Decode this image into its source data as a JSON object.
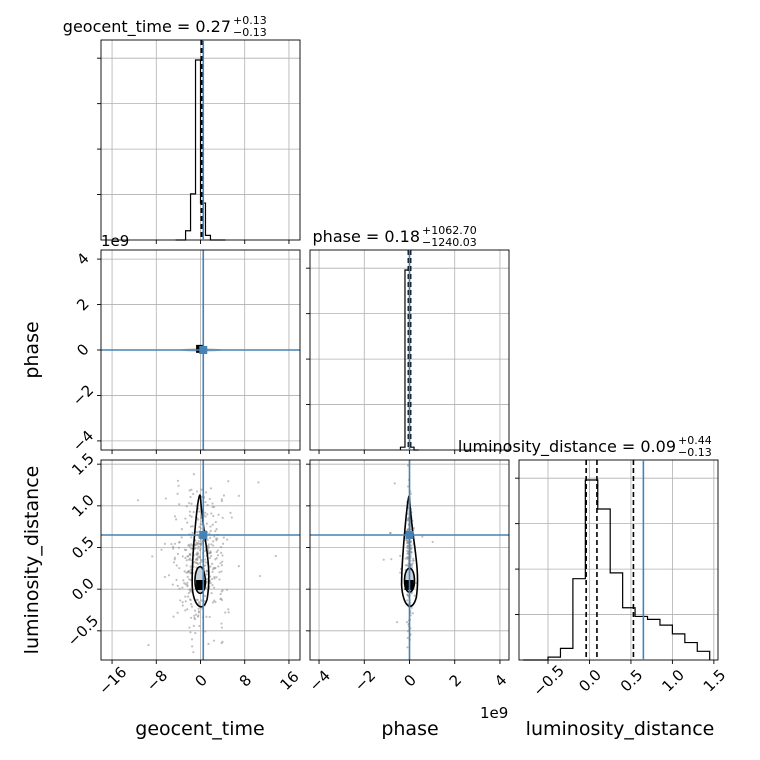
{
  "colors": {
    "truth": "#4682b4",
    "hist": "#000000",
    "grid": "#b0b0b0",
    "scatter": "#8c8c8c",
    "fill": "#c7d2dc"
  },
  "chart_data": {
    "type": "corner",
    "parameters": [
      "geocent_time",
      "phase",
      "luminosity_distance"
    ],
    "titles": [
      {
        "param": "geocent_time",
        "median": "0.27",
        "plus": "+0.13",
        "minus": "−0.13"
      },
      {
        "param": "phase",
        "median": "0.18",
        "plus": "+1062.70",
        "minus": "−1240.03"
      },
      {
        "param": "luminosity_distance",
        "median": "0.09",
        "plus": "+0.44",
        "minus": "−0.13"
      }
    ],
    "truths": {
      "geocent_time": 0.5,
      "phase": 0.0,
      "luminosity_distance": 0.65
    },
    "axes": {
      "geocent_time": {
        "range": [
          -18,
          18
        ],
        "ticks": [
          -16,
          -8,
          0,
          8,
          16
        ],
        "tick_labels": [
          "−16",
          "−8",
          "0",
          "8",
          "16"
        ],
        "label": "geocent_time"
      },
      "phase": {
        "range": [
          -4.4,
          4.4
        ],
        "ticks": [
          -4,
          -2,
          0,
          2,
          4
        ],
        "tick_labels": [
          "−4",
          "−2",
          "0",
          "2",
          "4"
        ],
        "label": "phase",
        "offset": "1e9"
      },
      "luminosity_distance": {
        "range": [
          -0.85,
          1.55
        ],
        "ticks": [
          -0.5,
          0.0,
          0.5,
          1.0,
          1.5
        ],
        "tick_labels": [
          "−0.5",
          "0.0",
          "0.5",
          "1.0",
          "1.5"
        ],
        "label": "luminosity_distance"
      }
    },
    "hist_geocent_time": {
      "edges": [
        -4.5,
        -3.6,
        -2.7,
        -1.8,
        -0.9,
        0.0,
        0.9,
        1.8,
        2.7,
        3.6,
        4.5
      ],
      "counts": [
        0,
        0,
        0.2,
        1.0,
        3.9,
        0.8,
        0.1,
        0,
        0,
        0
      ],
      "quantiles": [
        0.14,
        0.27,
        0.4
      ]
    },
    "hist_phase": {
      "edges": [
        -0.4,
        -0.2,
        0.0,
        0.2,
        0.4
      ],
      "counts": [
        0.05,
        3.2,
        0.05,
        0
      ],
      "quantiles": [
        -0.05,
        0.0,
        0.05
      ]
    },
    "hist_luminosity_distance": {
      "edges": [
        -0.8,
        -0.65,
        -0.5,
        -0.35,
        -0.2,
        -0.05,
        0.1,
        0.25,
        0.4,
        0.55,
        0.7,
        0.85,
        1.0,
        1.15,
        1.3,
        1.45
      ],
      "counts": [
        0,
        0,
        0.05,
        0.2,
        1.4,
        3.1,
        2.6,
        1.5,
        0.9,
        0.75,
        0.7,
        0.6,
        0.45,
        0.3,
        0.15
      ],
      "quantiles": [
        -0.04,
        0.09,
        0.53
      ]
    }
  }
}
